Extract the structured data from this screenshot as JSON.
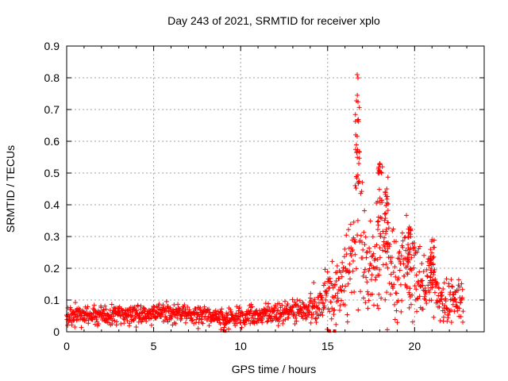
{
  "chart_data": {
    "type": "scatter",
    "title": "Day 243 of 2021, SRMTID for receiver xplo",
    "xlabel": "GPS time / hours",
    "ylabel": "SRMTID / TECUs",
    "xlim": [
      0,
      24
    ],
    "ylim": [
      0,
      0.9
    ],
    "xticks": [
      0,
      5,
      10,
      15,
      20
    ],
    "xtick_labels": [
      "0",
      "5",
      "10",
      "15",
      "20"
    ],
    "yticks": [
      0,
      0.1,
      0.2,
      0.3,
      0.4,
      0.5,
      0.6,
      0.7,
      0.8,
      0.9
    ],
    "ytick_labels": [
      "0",
      "0.1",
      "0.2",
      "0.3",
      "0.4",
      "0.5",
      "0.6",
      "0.7",
      "0.8",
      "0.9"
    ],
    "grid": true,
    "marker": "+",
    "color": "#ff0000",
    "series": [
      {
        "name": "SRMTID",
        "envelope_hours": [
          0,
          1,
          2,
          3,
          4,
          5,
          6,
          7,
          8,
          9,
          10,
          11,
          12,
          13,
          13.5,
          14,
          14.5,
          15,
          15.5,
          16,
          16.3,
          16.6,
          16.8,
          17,
          17.5,
          18,
          18.3,
          18.6,
          19,
          19.5,
          20,
          20.5,
          21,
          21.5,
          22,
          22.8
        ],
        "median_values": [
          0.05,
          0.05,
          0.05,
          0.055,
          0.055,
          0.06,
          0.06,
          0.055,
          0.05,
          0.04,
          0.05,
          0.05,
          0.06,
          0.065,
          0.07,
          0.07,
          0.08,
          0.12,
          0.13,
          0.15,
          0.22,
          0.35,
          0.45,
          0.28,
          0.2,
          0.25,
          0.3,
          0.22,
          0.2,
          0.2,
          0.2,
          0.14,
          0.16,
          0.09,
          0.09,
          0.1
        ],
        "peaks": [
          {
            "x": 16.7,
            "y": 0.81
          },
          {
            "x": 18.0,
            "y": 0.53
          },
          {
            "x": 18.4,
            "y": 0.45
          },
          {
            "x": 19.7,
            "y": 0.33
          },
          {
            "x": 21.0,
            "y": 0.29
          }
        ],
        "zero_points": [
          {
            "x": 9.1,
            "y": 0.0
          },
          {
            "x": 15.1,
            "y": 0.0
          },
          {
            "x": 15.4,
            "y": 0.0
          }
        ]
      }
    ]
  }
}
